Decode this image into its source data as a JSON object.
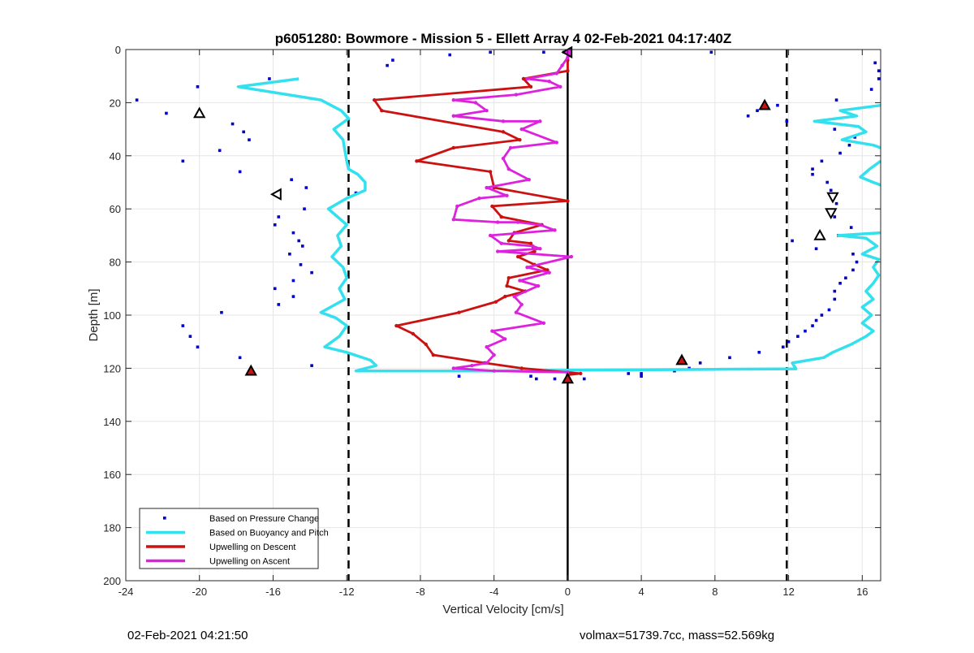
{
  "footer": {
    "timestamp": "02-Feb-2021 04:21:50",
    "stats": "volmax=51739.7cc, mass=52.569kg"
  },
  "chart_data": {
    "type": "line",
    "title": "p6051280: Bowmore - Mission 5 - Ellett Array 4 02-Feb-2021 04:17:40Z",
    "xlabel": "Vertical Velocity [cm/s]",
    "ylabel": "Depth [m]",
    "xlim": [
      -24,
      17
    ],
    "ylim": [
      0,
      200
    ],
    "y_reversed": true,
    "grid": true,
    "legend_placement": "bottom-left",
    "x_ticks": [
      -24,
      -20,
      -16,
      -12,
      -8,
      -4,
      0,
      4,
      8,
      12,
      16
    ],
    "y_ticks": [
      0,
      20,
      40,
      60,
      80,
      100,
      120,
      140,
      160,
      180,
      200
    ],
    "vertical_lines": [
      {
        "x": -11.9,
        "style": "dashed",
        "color": "#000000"
      },
      {
        "x": 0,
        "style": "solid",
        "color": "#000000"
      },
      {
        "x": 11.9,
        "style": "dashed",
        "color": "#000000"
      }
    ],
    "series": [
      {
        "name": "Based on Pressure Change",
        "kind": "scatter",
        "color": "#0000cc",
        "points": [
          [
            -23.4,
            19
          ],
          [
            -21.8,
            24
          ],
          [
            -20.1,
            14
          ],
          [
            -20.9,
            42
          ],
          [
            -18.9,
            38
          ],
          [
            -18.2,
            28
          ],
          [
            -17.6,
            31
          ],
          [
            -17.3,
            34
          ],
          [
            -17.8,
            46
          ],
          [
            -16.2,
            11
          ],
          [
            -15.0,
            49
          ],
          [
            -14.2,
            52
          ],
          [
            -11.5,
            54
          ],
          [
            -14.3,
            60
          ],
          [
            -15.7,
            63
          ],
          [
            -15.9,
            66
          ],
          [
            -14.9,
            69
          ],
          [
            -14.6,
            72
          ],
          [
            -14.4,
            74
          ],
          [
            -15.1,
            77
          ],
          [
            -14.5,
            81
          ],
          [
            -13.9,
            84
          ],
          [
            -14.9,
            87
          ],
          [
            -15.9,
            90
          ],
          [
            -14.9,
            93
          ],
          [
            -15.7,
            96
          ],
          [
            -18.8,
            99
          ],
          [
            -20.9,
            104
          ],
          [
            -20.5,
            108
          ],
          [
            -20.1,
            112
          ],
          [
            -17.8,
            116
          ],
          [
            -13.9,
            119
          ],
          [
            -11.0,
            121
          ],
          [
            -9.8,
            6
          ],
          [
            -9.5,
            4
          ],
          [
            -6.4,
            2
          ],
          [
            -4.2,
            1
          ],
          [
            -1.3,
            1
          ],
          [
            -0.2,
            1
          ],
          [
            7.8,
            1
          ],
          [
            -5.9,
            123
          ],
          [
            -2.0,
            123
          ],
          [
            -1.7,
            124
          ],
          [
            -0.7,
            124
          ],
          [
            0.9,
            124
          ],
          [
            4.0,
            123
          ],
          [
            4.0,
            122
          ],
          [
            3.3,
            122
          ],
          [
            5.8,
            121
          ],
          [
            6.6,
            120
          ],
          [
            7.2,
            118
          ],
          [
            8.8,
            116
          ],
          [
            10.4,
            114
          ],
          [
            9.8,
            25
          ],
          [
            10.3,
            23
          ],
          [
            11.4,
            21
          ],
          [
            11.9,
            27
          ],
          [
            11.7,
            112
          ],
          [
            12.0,
            110
          ],
          [
            12.5,
            108
          ],
          [
            12.9,
            106
          ],
          [
            13.3,
            104
          ],
          [
            13.5,
            102
          ],
          [
            13.8,
            100
          ],
          [
            14.2,
            98
          ],
          [
            14.5,
            94
          ],
          [
            14.5,
            91
          ],
          [
            14.8,
            88
          ],
          [
            15.1,
            86
          ],
          [
            15.5,
            83
          ],
          [
            15.7,
            80
          ],
          [
            15.5,
            77
          ],
          [
            13.5,
            75
          ],
          [
            12.2,
            72
          ],
          [
            14.7,
            70
          ],
          [
            15.4,
            67
          ],
          [
            14.5,
            63
          ],
          [
            14.3,
            61
          ],
          [
            14.6,
            58
          ],
          [
            14.3,
            53
          ],
          [
            14.1,
            50
          ],
          [
            13.3,
            47
          ],
          [
            13.3,
            45
          ],
          [
            13.8,
            42
          ],
          [
            14.8,
            39
          ],
          [
            15.3,
            36
          ],
          [
            15.6,
            33
          ],
          [
            14.5,
            30
          ],
          [
            14.6,
            19
          ],
          [
            16.5,
            15
          ],
          [
            16.9,
            11
          ],
          [
            16.9,
            8
          ],
          [
            16.7,
            5
          ]
        ]
      },
      {
        "name": "Based on Buoyancy and Pitch",
        "kind": "line",
        "color": "#33e0ee",
        "points_left": [
          [
            -14.6,
            11
          ],
          [
            -17.9,
            14
          ],
          [
            -13.4,
            19
          ],
          [
            -12.3,
            23
          ],
          [
            -11.9,
            26
          ],
          [
            -12.7,
            30
          ],
          [
            -12.2,
            34
          ],
          [
            -12.1,
            38
          ],
          [
            -12.0,
            42
          ],
          [
            -11.9,
            45
          ],
          [
            -11.4,
            47
          ],
          [
            -11.0,
            50
          ],
          [
            -11.0,
            53
          ],
          [
            -12.0,
            56
          ],
          [
            -13.0,
            60
          ],
          [
            -12.5,
            63
          ],
          [
            -12.0,
            66
          ],
          [
            -12.5,
            70
          ],
          [
            -12.3,
            74
          ],
          [
            -12.8,
            78
          ],
          [
            -12.2,
            82
          ],
          [
            -12.0,
            86
          ],
          [
            -12.4,
            90
          ],
          [
            -12.1,
            94
          ],
          [
            -13.4,
            99
          ],
          [
            -12.6,
            101
          ],
          [
            -12.0,
            104
          ],
          [
            -12.4,
            108
          ],
          [
            -13.2,
            112
          ],
          [
            -12.0,
            114
          ],
          [
            -10.7,
            117
          ],
          [
            -10.4,
            119
          ],
          [
            -11.5,
            121
          ],
          [
            -4.0,
            121
          ],
          [
            -1.0,
            120.8
          ],
          [
            0,
            120.7
          ],
          [
            4.0,
            120.6
          ],
          [
            8.0,
            120.4
          ],
          [
            12.4,
            120.2
          ],
          [
            12.2,
            118
          ],
          [
            13.9,
            116
          ],
          [
            14.4,
            114
          ],
          [
            15.4,
            111
          ],
          [
            16.2,
            108
          ],
          [
            16.6,
            106
          ],
          [
            16.0,
            103
          ],
          [
            16.5,
            100
          ],
          [
            16.0,
            97
          ],
          [
            16.6,
            94
          ],
          [
            16.2,
            91
          ],
          [
            16.6,
            88
          ],
          [
            16.9,
            85
          ],
          [
            16.6,
            82
          ],
          [
            16.9,
            79
          ],
          [
            16.0,
            77
          ],
          [
            16.8,
            74
          ],
          [
            16.2,
            71
          ],
          [
            14.7,
            70
          ],
          [
            17.0,
            69
          ]
        ],
        "points_right": [
          [
            17.0,
            21
          ],
          [
            14.8,
            23
          ],
          [
            15.7,
            25
          ],
          [
            13.4,
            27
          ],
          [
            15.8,
            29
          ],
          [
            16.2,
            31
          ],
          [
            14.9,
            34
          ],
          [
            16.6,
            36
          ],
          [
            17.0,
            37
          ]
        ],
        "points_right2": [
          [
            17.0,
            42
          ],
          [
            16.4,
            45
          ],
          [
            15.9,
            48
          ],
          [
            16.6,
            50
          ],
          [
            17.0,
            51
          ]
        ]
      },
      {
        "name": "Upwelling on Descent",
        "kind": "line",
        "color": "#cc1111",
        "points": [
          [
            0,
            1
          ],
          [
            0,
            4
          ],
          [
            0,
            8
          ],
          [
            -2.4,
            11
          ],
          [
            -2.0,
            14
          ],
          [
            -10.5,
            19
          ],
          [
            -10.1,
            23
          ],
          [
            -3.5,
            31
          ],
          [
            -2.6,
            34
          ],
          [
            -6.2,
            37
          ],
          [
            -8.2,
            42
          ],
          [
            -4.2,
            46
          ],
          [
            -4.0,
            52
          ],
          [
            0,
            57
          ],
          [
            -4.1,
            59
          ],
          [
            -3.6,
            63
          ],
          [
            -1.4,
            66
          ],
          [
            -2.9,
            69
          ],
          [
            -3.2,
            72
          ],
          [
            -2.0,
            73
          ],
          [
            -1.8,
            76
          ],
          [
            -2.7,
            78
          ],
          [
            -1.8,
            81
          ],
          [
            -1.1,
            83
          ],
          [
            -3.2,
            86
          ],
          [
            -3.3,
            89
          ],
          [
            -2.3,
            91
          ],
          [
            -3.4,
            93
          ],
          [
            -3.9,
            95
          ],
          [
            -5.9,
            99
          ],
          [
            -9.3,
            104
          ],
          [
            -8.4,
            107
          ],
          [
            -7.7,
            111
          ],
          [
            -7.3,
            115
          ],
          [
            -4.5,
            118
          ],
          [
            -2.5,
            120
          ],
          [
            0.7,
            122
          ],
          [
            0,
            122.5
          ],
          [
            0,
            124
          ]
        ]
      },
      {
        "name": "Upwelling on Ascent",
        "kind": "line",
        "color": "#dd22dd",
        "points": [
          [
            0,
            1
          ],
          [
            0,
            3
          ],
          [
            -0.3,
            6
          ],
          [
            -0.6,
            9
          ],
          [
            -2.2,
            11
          ],
          [
            -1.0,
            12
          ],
          [
            -0.4,
            14
          ],
          [
            -2.8,
            17
          ],
          [
            -6.2,
            19
          ],
          [
            -5.0,
            20
          ],
          [
            -4.4,
            23
          ],
          [
            -6.2,
            25
          ],
          [
            -3.5,
            27
          ],
          [
            -1.5,
            27
          ],
          [
            -2.5,
            30
          ],
          [
            -0.6,
            35
          ],
          [
            -3.1,
            37
          ],
          [
            -3.5,
            41
          ],
          [
            -3.2,
            45
          ],
          [
            -2.1,
            49
          ],
          [
            -4.4,
            52
          ],
          [
            -3.3,
            55
          ],
          [
            -4.8,
            56
          ],
          [
            -6.0,
            59
          ],
          [
            -6.2,
            64
          ],
          [
            -3.8,
            65
          ],
          [
            -2.7,
            65
          ],
          [
            -1.5,
            66
          ],
          [
            -0.7,
            68
          ],
          [
            -4.2,
            70
          ],
          [
            -3.6,
            73
          ],
          [
            -1.9,
            74
          ],
          [
            -1.5,
            75
          ],
          [
            -3.8,
            76
          ],
          [
            0.2,
            78
          ],
          [
            -2.2,
            82
          ],
          [
            -1.0,
            84
          ],
          [
            -2.6,
            87
          ],
          [
            -1.6,
            89
          ],
          [
            -2.9,
            93
          ],
          [
            -2.5,
            96
          ],
          [
            -2.8,
            99
          ],
          [
            -1.3,
            103
          ],
          [
            -4.1,
            106
          ],
          [
            -3.4,
            109
          ],
          [
            -4.4,
            112
          ],
          [
            -4.0,
            115
          ],
          [
            -4.4,
            118
          ],
          [
            -5.2,
            119
          ],
          [
            -6.2,
            120
          ],
          [
            -4.0,
            121
          ],
          [
            0,
            121.5
          ]
        ]
      }
    ],
    "markers": [
      {
        "x": -20,
        "y": 24,
        "shape": "triangle-up",
        "fill": "none"
      },
      {
        "x": -15.8,
        "y": 54.5,
        "shape": "triangle-left",
        "fill": "none"
      },
      {
        "x": -17.2,
        "y": 121,
        "shape": "triangle-up",
        "fill": "#cc1111"
      },
      {
        "x": 0,
        "y": 1,
        "shape": "triangle-left",
        "fill": "#dd22dd"
      },
      {
        "x": 0,
        "y": 124,
        "shape": "triangle-up",
        "fill": "#cc1111"
      },
      {
        "x": 6.2,
        "y": 117,
        "shape": "triangle-up",
        "fill": "#cc1111"
      },
      {
        "x": 10.7,
        "y": 21,
        "shape": "triangle-up",
        "fill": "#cc1111"
      },
      {
        "x": 14.4,
        "y": 55.5,
        "shape": "triangle-down",
        "fill": "none"
      },
      {
        "x": 14.3,
        "y": 61.5,
        "shape": "triangle-down",
        "fill": "none"
      },
      {
        "x": 13.7,
        "y": 70,
        "shape": "triangle-up",
        "fill": "none"
      }
    ]
  }
}
